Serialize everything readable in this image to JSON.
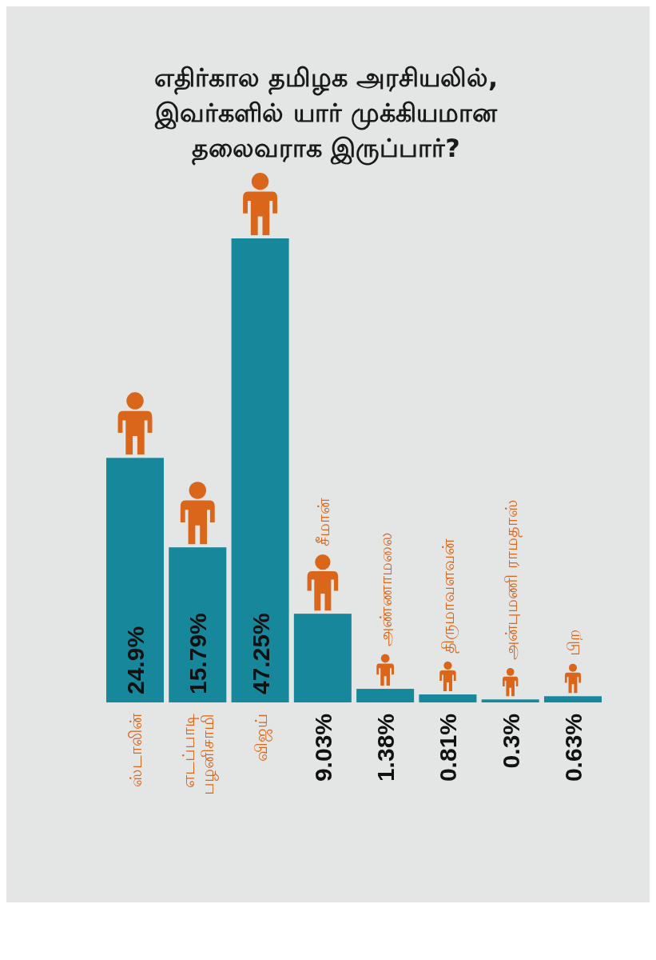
{
  "chart_data": {
    "type": "bar",
    "title": "எதிர்கால தமிழக அரசியலில்,\nஇவர்களில் யார் முக்கியமான\nதலைவராக இருப்பார்?",
    "categories": [
      "ஸ்டாலின்",
      "எடப்பாடி\nபழனிசாமி",
      "விஜய்",
      "சீமான்",
      "அண்ணாமலை",
      "திருமாவளவன்",
      "அன்புமணி ராமதாஸ்",
      "பிற"
    ],
    "values": [
      24.9,
      15.79,
      47.25,
      9.03,
      1.38,
      0.81,
      0.3,
      0.63
    ],
    "value_labels": [
      "24.9%",
      "15.79%",
      "47.25%",
      "9.03%",
      "1.38%",
      "0.81%",
      "0.3%",
      "0.63%"
    ],
    "color": "#17879c"
  }
}
